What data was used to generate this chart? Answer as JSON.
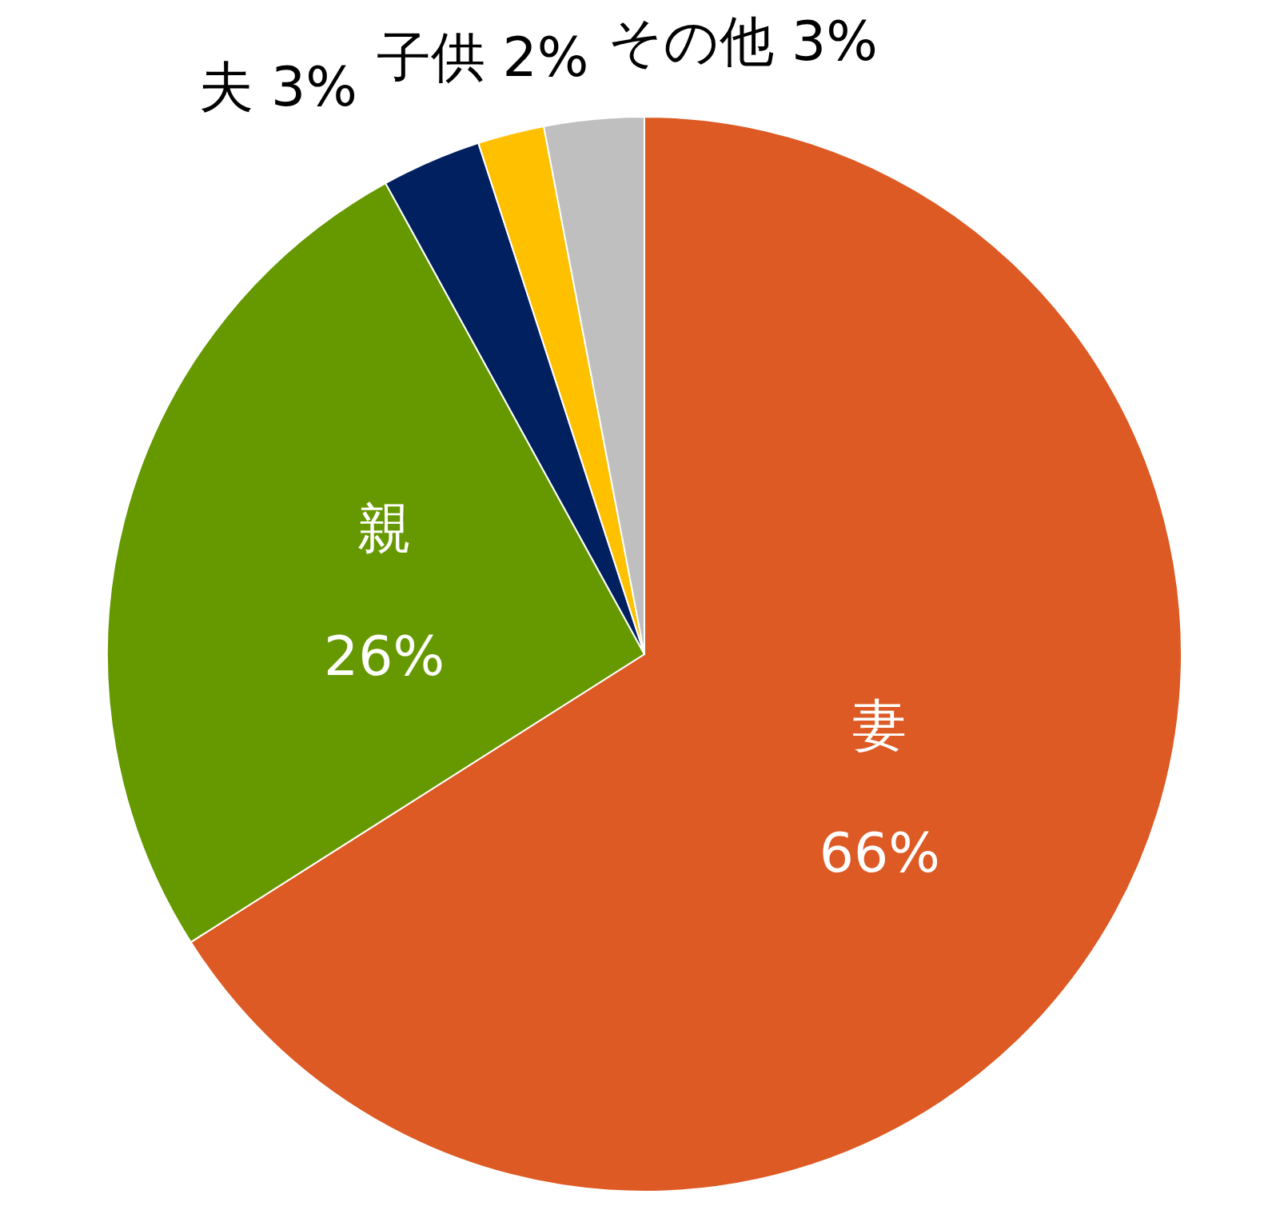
{
  "chart_data": {
    "type": "pie",
    "categories": [
      "妻",
      "親",
      "夫",
      "子供",
      "その他"
    ],
    "values": [
      66,
      26,
      3,
      2,
      3
    ],
    "value_labels": [
      "66%",
      "26%",
      "3%",
      "2%",
      "3%"
    ],
    "colors": [
      "#dd5a24",
      "#669900",
      "#002060",
      "#ffc000",
      "#bfbfbf"
    ]
  }
}
